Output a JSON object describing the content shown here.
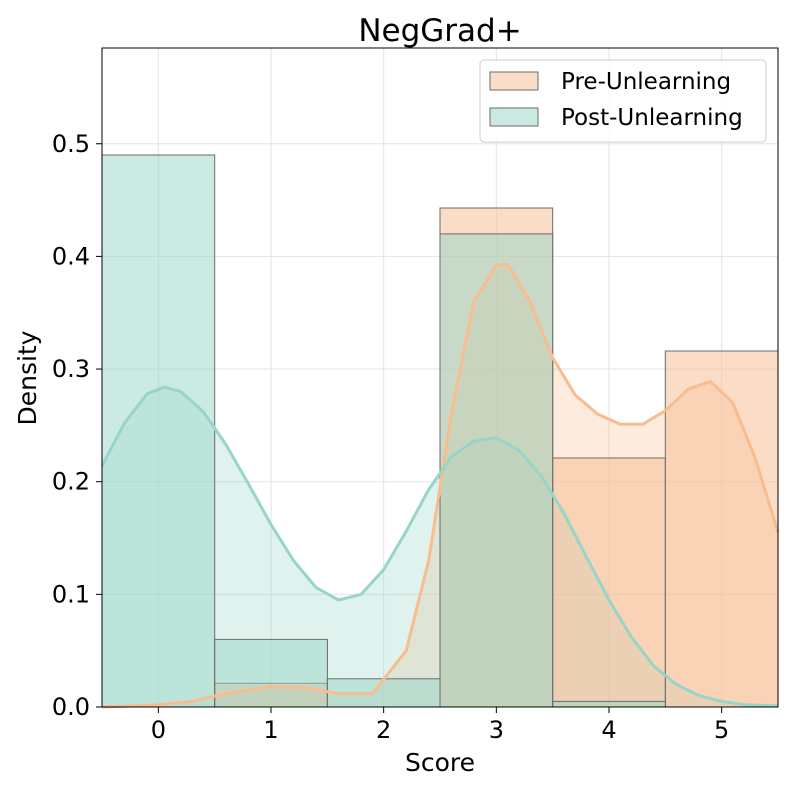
{
  "chart_data": {
    "type": "bar",
    "title": "NegGrad+",
    "xlabel": "Score",
    "ylabel": "Density",
    "xlim": [
      -0.5,
      5.5
    ],
    "ylim": [
      0,
      0.585
    ],
    "x_ticks": [
      0,
      1,
      2,
      3,
      4,
      5
    ],
    "y_ticks": [
      0.0,
      0.1,
      0.2,
      0.3,
      0.4,
      0.5
    ],
    "grid": true,
    "legend_position": "top-right",
    "categories": [
      0,
      1,
      2,
      3,
      4,
      5
    ],
    "series": [
      {
        "name": "Pre-Unlearning",
        "color": "#f8bc8f",
        "values": [
          0.0,
          0.021,
          0.0,
          0.443,
          0.221,
          0.316
        ],
        "kde": {
          "x": [
            -0.5,
            -0.2,
            0.0,
            0.3,
            0.6,
            1.0,
            1.3,
            1.6,
            1.9,
            2.2,
            2.4,
            2.6,
            2.8,
            3.0,
            3.1,
            3.3,
            3.5,
            3.7,
            3.9,
            4.1,
            4.3,
            4.5,
            4.7,
            4.9,
            5.1,
            5.3,
            5.5
          ],
          "y": [
            0.0,
            0.001,
            0.002,
            0.005,
            0.012,
            0.018,
            0.017,
            0.012,
            0.012,
            0.05,
            0.13,
            0.26,
            0.36,
            0.392,
            0.393,
            0.36,
            0.31,
            0.277,
            0.26,
            0.251,
            0.251,
            0.263,
            0.282,
            0.289,
            0.27,
            0.22,
            0.155
          ]
        }
      },
      {
        "name": "Post-Unlearning",
        "color": "#97d5c8",
        "values": [
          0.49,
          0.06,
          0.025,
          0.42,
          0.005,
          0.0
        ],
        "kde": {
          "x": [
            -0.5,
            -0.3,
            -0.1,
            0.05,
            0.2,
            0.4,
            0.6,
            0.8,
            1.0,
            1.2,
            1.4,
            1.6,
            1.8,
            2.0,
            2.2,
            2.4,
            2.6,
            2.8,
            3.0,
            3.2,
            3.4,
            3.6,
            3.8,
            4.0,
            4.2,
            4.4,
            4.6,
            4.8,
            5.0,
            5.2,
            5.5
          ],
          "y": [
            0.214,
            0.252,
            0.278,
            0.284,
            0.28,
            0.262,
            0.233,
            0.198,
            0.162,
            0.13,
            0.106,
            0.095,
            0.1,
            0.122,
            0.156,
            0.193,
            0.222,
            0.236,
            0.239,
            0.228,
            0.205,
            0.172,
            0.133,
            0.095,
            0.062,
            0.036,
            0.02,
            0.01,
            0.005,
            0.002,
            0.001
          ]
        }
      }
    ]
  }
}
